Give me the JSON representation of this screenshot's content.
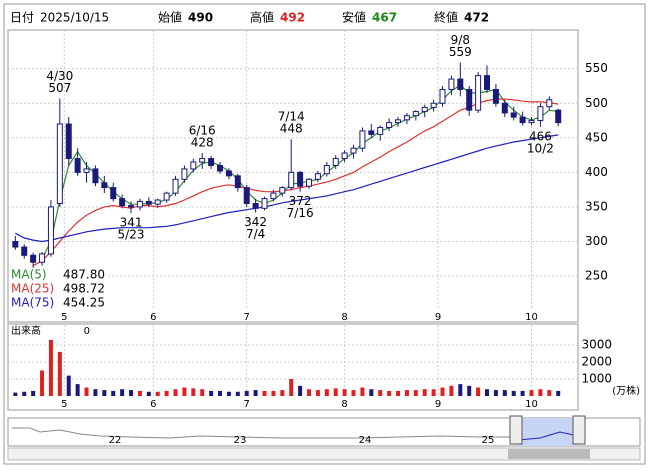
{
  "header": {
    "date_label": "日付",
    "date": "2025/10/15",
    "open_label": "始値",
    "open": 490,
    "high_label": "高値",
    "high": 492,
    "low_label": "安値",
    "low": 467,
    "close_label": "終値",
    "close": 472
  },
  "chart_data": [
    {
      "type": "candlestick",
      "ylim": [
        198,
        606
      ],
      "yticks": [
        250,
        300,
        350,
        400,
        450,
        500,
        550
      ],
      "xlim": [
        -0.6,
        63
      ],
      "xticks": [
        {
          "value": 5.5,
          "label": "5"
        },
        {
          "value": 15.5,
          "label": "6"
        },
        {
          "value": 26,
          "label": "7"
        },
        {
          "value": 37,
          "label": "8"
        },
        {
          "value": 47.5,
          "label": "9"
        },
        {
          "value": 58,
          "label": "10"
        }
      ],
      "grid": true,
      "up_color": "#ffffff",
      "down_color": "#1a1a7a",
      "edge_color": "#1a1a7a",
      "open": [
        300,
        292,
        280,
        270,
        282,
        355,
        470,
        420,
        400,
        405,
        385,
        378,
        362,
        352,
        350,
        358,
        354,
        360,
        370,
        390,
        405,
        415,
        420,
        410,
        402,
        395,
        378,
        355,
        348,
        362,
        370,
        378,
        400,
        380,
        390,
        398,
        410,
        420,
        428,
        435,
        460,
        455,
        465,
        472,
        476,
        482,
        488,
        494,
        500,
        520,
        535,
        520,
        490,
        540,
        520,
        500,
        486,
        480,
        472,
        475,
        495,
        490
      ],
      "high": [
        308,
        296,
        284,
        285,
        360,
        507,
        480,
        435,
        415,
        410,
        395,
        385,
        368,
        358,
        362,
        364,
        362,
        372,
        395,
        410,
        420,
        428,
        424,
        415,
        406,
        398,
        382,
        362,
        365,
        375,
        380,
        448,
        402,
        392,
        402,
        415,
        425,
        432,
        440,
        465,
        470,
        468,
        478,
        480,
        486,
        490,
        498,
        505,
        525,
        540,
        559,
        525,
        545,
        555,
        528,
        505,
        495,
        488,
        480,
        500,
        510,
        492
      ],
      "low": [
        288,
        275,
        262,
        265,
        278,
        350,
        410,
        395,
        385,
        380,
        370,
        358,
        348,
        341,
        345,
        350,
        349,
        356,
        366,
        385,
        400,
        405,
        405,
        398,
        390,
        372,
        350,
        342,
        345,
        358,
        365,
        375,
        372,
        376,
        386,
        394,
        405,
        415,
        420,
        430,
        450,
        446,
        460,
        466,
        470,
        475,
        480,
        488,
        495,
        512,
        510,
        482,
        486,
        515,
        495,
        480,
        475,
        468,
        468,
        466,
        490,
        467
      ],
      "close": [
        292,
        280,
        270,
        282,
        350,
        470,
        420,
        400,
        405,
        385,
        378,
        362,
        352,
        350,
        358,
        354,
        360,
        370,
        390,
        405,
        415,
        420,
        410,
        402,
        395,
        378,
        355,
        348,
        362,
        370,
        378,
        400,
        380,
        390,
        398,
        410,
        420,
        428,
        435,
        460,
        455,
        465,
        472,
        476,
        482,
        488,
        494,
        500,
        520,
        535,
        520,
        490,
        540,
        520,
        500,
        486,
        480,
        472,
        475,
        495,
        505,
        472
      ],
      "series": [
        {
          "name": "MA(5)",
          "color": "#2e8b2e",
          "latest": {
            "value": 487.8,
            "label": "487.80"
          },
          "values": [
            null,
            null,
            null,
            275,
            300,
            360,
            410,
            430,
            410,
            398,
            385,
            372,
            362,
            354,
            354,
            355,
            356,
            361,
            372,
            388,
            403,
            413,
            415,
            410,
            402,
            390,
            373,
            360,
            355,
            360,
            370,
            383,
            385,
            387,
            390,
            400,
            410,
            420,
            428,
            442,
            450,
            460,
            464,
            471,
            477,
            482,
            488,
            494,
            505,
            518,
            526,
            515,
            515,
            517,
            520,
            502,
            490,
            480,
            476,
            480,
            490,
            487.8
          ]
        },
        {
          "name": "MA(25)",
          "color": "#e03030",
          "latest": 498.72,
          "values": [
            null,
            null,
            265,
            272,
            285,
            300,
            315,
            328,
            338,
            345,
            350,
            352,
            350,
            348,
            352,
            352,
            350,
            352,
            355,
            360,
            366,
            372,
            377,
            380,
            382,
            380,
            377,
            374,
            372,
            372,
            373,
            375,
            378,
            380,
            383,
            386,
            390,
            395,
            400,
            408,
            415,
            422,
            430,
            437,
            444,
            452,
            460,
            466,
            474,
            482,
            490,
            494,
            500,
            504,
            506,
            506,
            505,
            503,
            502,
            502,
            501,
            498.72
          ]
        },
        {
          "name": "MA(75)",
          "color": "#2020c0",
          "latest": 454.25,
          "values": [
            312,
            305,
            302,
            300,
            302,
            305,
            308,
            311,
            314,
            316,
            318,
            319,
            320,
            320,
            320,
            320,
            321,
            322,
            324,
            327,
            330,
            333,
            336,
            339,
            342,
            344,
            346,
            348,
            350,
            353,
            356,
            358,
            360,
            362,
            364,
            366,
            369,
            372,
            375,
            379,
            383,
            387,
            391,
            395,
            399,
            403,
            407,
            411,
            415,
            419,
            423,
            427,
            431,
            435,
            438,
            441,
            444,
            446,
            448,
            450,
            452,
            454.25
          ]
        }
      ],
      "annotations": [
        {
          "x": 5,
          "date": "4/30",
          "value": 507,
          "pos": "above"
        },
        {
          "x": 13,
          "date": "5/23",
          "value": 341,
          "pos": "below"
        },
        {
          "x": 21,
          "date": "6/16",
          "value": 428,
          "pos": "above"
        },
        {
          "x": 27,
          "date": "7/4",
          "value": 342,
          "pos": "below"
        },
        {
          "x": 31,
          "date": "7/14",
          "value": 448,
          "pos": "above"
        },
        {
          "x": 32,
          "date": "7/16",
          "value": 372,
          "pos": "below"
        },
        {
          "x": 50,
          "date": "9/8",
          "value": 559,
          "pos": "above"
        },
        {
          "x": 59,
          "date": "10/2",
          "value": 466,
          "pos": "below"
        }
      ]
    },
    {
      "type": "bar",
      "title": "出来高",
      "title_value": 0,
      "unit": "(万株)",
      "ylim": [
        0,
        4180
      ],
      "yticks": [
        1000,
        2000,
        3000
      ],
      "grid": true,
      "up_color": "#e02020",
      "down_color": "#1a1a7a",
      "values": [
        200,
        250,
        300,
        1500,
        3300,
        2600,
        1200,
        700,
        500,
        400,
        350,
        300,
        400,
        350,
        300,
        250,
        250,
        300,
        400,
        500,
        450,
        400,
        300,
        300,
        250,
        250,
        300,
        350,
        300,
        300,
        350,
        1000,
        600,
        400,
        350,
        400,
        450,
        400,
        350,
        500,
        400,
        350,
        300,
        300,
        350,
        350,
        400,
        400,
        500,
        600,
        700,
        600,
        500,
        400,
        350,
        350,
        300,
        300,
        350,
        400,
        350,
        300
      ]
    }
  ],
  "navigator": {
    "labels": [
      "22",
      "23",
      "24",
      "25"
    ]
  }
}
